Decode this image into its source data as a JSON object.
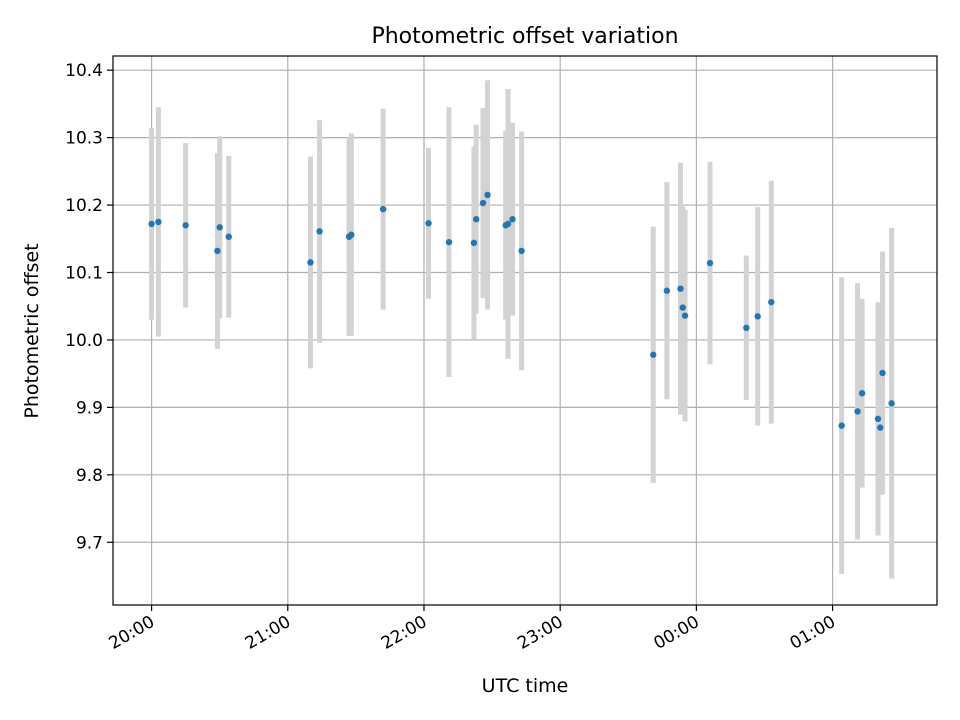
{
  "chart_data": {
    "type": "scatter",
    "title": "Photometric offset variation",
    "xlabel": "UTC time",
    "ylabel": "Photometric offset",
    "x_ticks": [
      "20:00",
      "21:00",
      "22:00",
      "23:00",
      "00:00",
      "01:00"
    ],
    "x_tick_times": [
      "19:59",
      "20:59",
      "21:59",
      "22:59",
      "23:59",
      "00:59"
    ],
    "xlim": [
      "19:42",
      "01:45"
    ],
    "y_ticks": [
      "9.7",
      "9.8",
      "9.9",
      "10.0",
      "10.1",
      "10.2",
      "10.3",
      "10.4"
    ],
    "ylim": [
      9.607,
      10.421
    ],
    "grid": true,
    "colors": {
      "point": "#1f77b4",
      "errorbar": "#d3d3d3",
      "grid": "#b0b0b0"
    },
    "points": [
      {
        "time": "19:59",
        "y": 10.172,
        "err": 0.142
      },
      {
        "time": "20:02",
        "y": 10.175,
        "err": 0.17
      },
      {
        "time": "20:14",
        "y": 10.17,
        "err": 0.122
      },
      {
        "time": "20:28",
        "y": 10.132,
        "err": 0.145
      },
      {
        "time": "20:29",
        "y": 10.167,
        "err": 0.135
      },
      {
        "time": "20:33",
        "y": 10.153,
        "err": 0.12
      },
      {
        "time": "21:09",
        "y": 10.115,
        "err": 0.157
      },
      {
        "time": "21:13",
        "y": 10.161,
        "err": 0.165
      },
      {
        "time": "21:26",
        "y": 10.153,
        "err": 0.147
      },
      {
        "time": "21:27",
        "y": 10.156,
        "err": 0.15
      },
      {
        "time": "21:41",
        "y": 10.194,
        "err": 0.149
      },
      {
        "time": "22:01",
        "y": 10.173,
        "err": 0.112
      },
      {
        "time": "22:10",
        "y": 10.145,
        "err": 0.2
      },
      {
        "time": "22:21",
        "y": 10.144,
        "err": 0.143
      },
      {
        "time": "22:22",
        "y": 10.179,
        "err": 0.14
      },
      {
        "time": "22:25",
        "y": 10.203,
        "err": 0.141
      },
      {
        "time": "22:27",
        "y": 10.215,
        "err": 0.17
      },
      {
        "time": "22:35",
        "y": 10.17,
        "err": 0.14
      },
      {
        "time": "22:36",
        "y": 10.172,
        "err": 0.2
      },
      {
        "time": "22:38",
        "y": 10.179,
        "err": 0.143
      },
      {
        "time": "22:42",
        "y": 10.132,
        "err": 0.177
      },
      {
        "time": "23:40",
        "y": 9.978,
        "err": 0.19
      },
      {
        "time": "23:46",
        "y": 10.073,
        "err": 0.161
      },
      {
        "time": "23:52",
        "y": 10.076,
        "err": 0.187
      },
      {
        "time": "23:53",
        "y": 10.048,
        "err": 0.15
      },
      {
        "time": "23:54",
        "y": 10.036,
        "err": 0.157
      },
      {
        "time": "00:05",
        "y": 10.114,
        "err": 0.15
      },
      {
        "time": "00:21",
        "y": 10.018,
        "err": 0.107
      },
      {
        "time": "00:26",
        "y": 10.035,
        "err": 0.162
      },
      {
        "time": "00:32",
        "y": 10.056,
        "err": 0.18
      },
      {
        "time": "01:03",
        "y": 9.873,
        "err": 0.22
      },
      {
        "time": "01:10",
        "y": 9.894,
        "err": 0.19
      },
      {
        "time": "01:12",
        "y": 9.921,
        "err": 0.14
      },
      {
        "time": "01:19",
        "y": 9.883,
        "err": 0.173
      },
      {
        "time": "01:20",
        "y": 9.87,
        "err": 0.1
      },
      {
        "time": "01:21",
        "y": 9.951,
        "err": 0.18
      },
      {
        "time": "01:25",
        "y": 9.906,
        "err": 0.26
      }
    ]
  }
}
